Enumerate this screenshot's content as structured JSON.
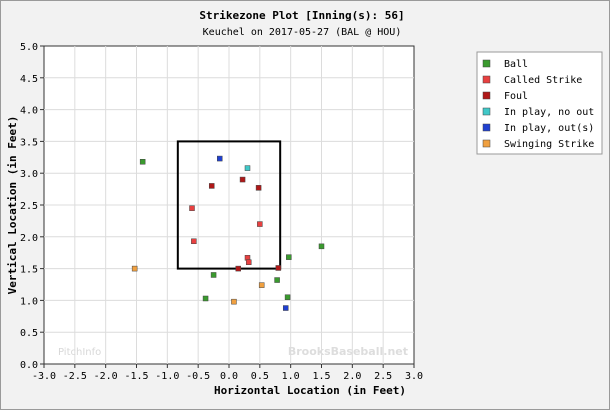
{
  "chart_data": {
    "type": "scatter",
    "title": "Strikezone Plot [Inning(s): 56]",
    "subtitle": "Keuchel on 2017-05-27 (BAL @ HOU)",
    "xlabel": "Horizontal Location (in Feet)",
    "ylabel": "Vertical Location (in Feet)",
    "xlim": [
      -3.0,
      3.0
    ],
    "ylim": [
      0.0,
      5.0
    ],
    "xticks": [
      "-3.0",
      "-2.5",
      "-2.0",
      "-1.5",
      "-1.0",
      "-0.5",
      "0.0",
      "0.5",
      "1.0",
      "1.5",
      "2.0",
      "2.5",
      "3.0"
    ],
    "yticks": [
      "0.0",
      "0.5",
      "1.0",
      "1.5",
      "2.0",
      "2.5",
      "3.0",
      "3.5",
      "4.0",
      "4.5",
      "5.0"
    ],
    "grid": true,
    "legend_position": "right",
    "strike_zone": {
      "x": [
        -0.83,
        0.83
      ],
      "y": [
        1.5,
        3.5
      ]
    },
    "watermarks": {
      "left": "PitchInfo",
      "right": "BrooksBaseball.net"
    },
    "series": [
      {
        "name": "Ball",
        "color": "#3a9a2e",
        "points": [
          [
            -1.4,
            3.18
          ],
          [
            -0.25,
            1.4
          ],
          [
            -0.38,
            1.03
          ],
          [
            0.97,
            1.68
          ],
          [
            1.5,
            1.85
          ],
          [
            0.78,
            1.32
          ],
          [
            0.95,
            1.05
          ]
        ]
      },
      {
        "name": "Called Strike",
        "color": "#e84040",
        "points": [
          [
            -0.6,
            2.45
          ],
          [
            -0.57,
            1.93
          ],
          [
            0.5,
            2.2
          ],
          [
            0.3,
            1.67
          ],
          [
            0.32,
            1.6
          ]
        ]
      },
      {
        "name": "Foul",
        "color": "#b01818",
        "points": [
          [
            -0.28,
            2.8
          ],
          [
            0.22,
            2.9
          ],
          [
            0.48,
            2.77
          ],
          [
            0.15,
            1.5
          ],
          [
            0.8,
            1.51
          ]
        ]
      },
      {
        "name": "In play, no out",
        "color": "#40c8c8",
        "points": [
          [
            0.3,
            3.08
          ]
        ]
      },
      {
        "name": "In play, out(s)",
        "color": "#2040d0",
        "points": [
          [
            -0.15,
            3.23
          ],
          [
            0.92,
            0.88
          ]
        ]
      },
      {
        "name": "Swinging Strike",
        "color": "#f0a040",
        "points": [
          [
            -1.53,
            1.5
          ],
          [
            0.08,
            0.98
          ],
          [
            0.53,
            1.24
          ]
        ]
      }
    ]
  }
}
